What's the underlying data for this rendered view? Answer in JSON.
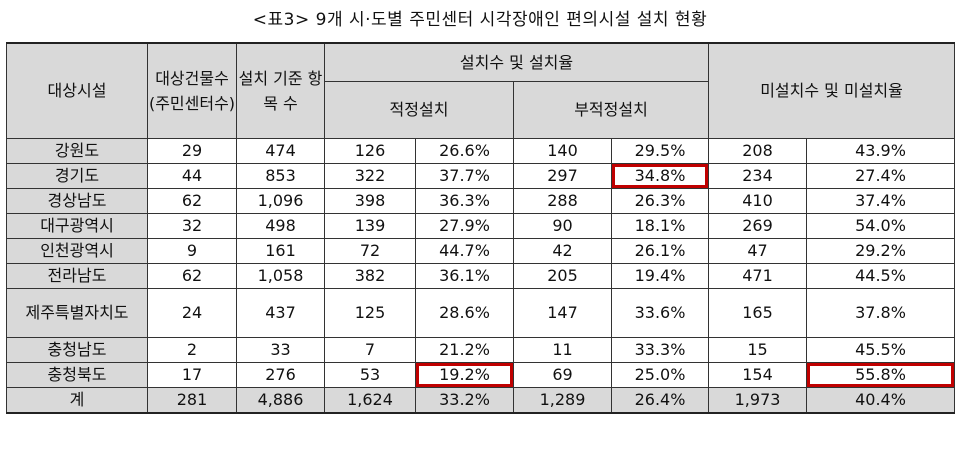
{
  "title": "<표3> 9개 시·도별 주민센터 시각장애인 편의시설 설치 현황",
  "headers": {
    "target_facility": "대상시설",
    "building_count": "대상건물수(주민센터수)",
    "criteria_items": "설치 기준 항목 수",
    "installed_group": "설치수 및 설치율",
    "proper": "적정설치",
    "improper": "부적정설치",
    "uninstalled_group": "미설치수 및 미설치율"
  },
  "rows": [
    {
      "region": "강원도",
      "buildings": "29",
      "items": "474",
      "proper_n": "126",
      "proper_p": "26.6%",
      "improper_n": "140",
      "improper_p": "29.5%",
      "un_n": "208",
      "un_p": "43.9%"
    },
    {
      "region": "경기도",
      "buildings": "44",
      "items": "853",
      "proper_n": "322",
      "proper_p": "37.7%",
      "improper_n": "297",
      "improper_p": "34.8%",
      "un_n": "234",
      "un_p": "27.4%"
    },
    {
      "region": "경상남도",
      "buildings": "62",
      "items": "1,096",
      "proper_n": "398",
      "proper_p": "36.3%",
      "improper_n": "288",
      "improper_p": "26.3%",
      "un_n": "410",
      "un_p": "37.4%"
    },
    {
      "region": "대구광역시",
      "buildings": "32",
      "items": "498",
      "proper_n": "139",
      "proper_p": "27.9%",
      "improper_n": "90",
      "improper_p": "18.1%",
      "un_n": "269",
      "un_p": "54.0%"
    },
    {
      "region": "인천광역시",
      "buildings": "9",
      "items": "161",
      "proper_n": "72",
      "proper_p": "44.7%",
      "improper_n": "42",
      "improper_p": "26.1%",
      "un_n": "47",
      "un_p": "29.2%"
    },
    {
      "region": "전라남도",
      "buildings": "62",
      "items": "1,058",
      "proper_n": "382",
      "proper_p": "36.1%",
      "improper_n": "205",
      "improper_p": "19.4%",
      "un_n": "471",
      "un_p": "44.5%"
    },
    {
      "region": "제주특별자치도",
      "buildings": "24",
      "items": "437",
      "proper_n": "125",
      "proper_p": "28.6%",
      "improper_n": "147",
      "improper_p": "33.6%",
      "un_n": "165",
      "un_p": "37.8%"
    },
    {
      "region": "충청남도",
      "buildings": "2",
      "items": "33",
      "proper_n": "7",
      "proper_p": "21.2%",
      "improper_n": "11",
      "improper_p": "33.3%",
      "un_n": "15",
      "un_p": "45.5%"
    },
    {
      "region": "충청북도",
      "buildings": "17",
      "items": "276",
      "proper_n": "53",
      "proper_p": "19.2%",
      "improper_n": "69",
      "improper_p": "25.0%",
      "un_n": "154",
      "un_p": "55.8%"
    }
  ],
  "total": {
    "label": "계",
    "buildings": "281",
    "items": "4,886",
    "proper_n": "1,624",
    "proper_p": "33.2%",
    "improper_n": "1,289",
    "improper_p": "26.4%",
    "un_n": "1,973",
    "un_p": "40.4%"
  },
  "highlight_color": "#c00000",
  "header_bg": "#d9d9d9"
}
